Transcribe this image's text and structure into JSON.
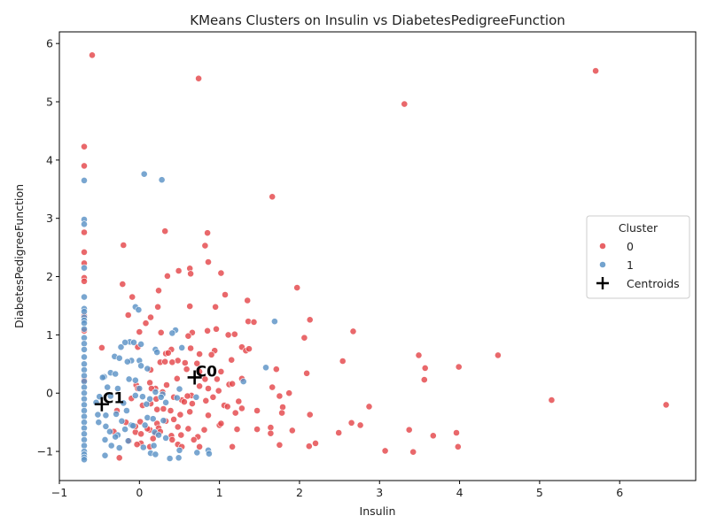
{
  "chart_data": {
    "type": "scatter",
    "title": "KMeans Clusters on Insulin vs DiabetesPedigreeFunction",
    "xlabel": "Insulin",
    "ylabel": "DiabetesPedigreeFunction",
    "xlim": [
      -1.0,
      6.95
    ],
    "ylim": [
      -1.5,
      6.2
    ],
    "xticks": [
      -1,
      0,
      1,
      2,
      3,
      4,
      5,
      6
    ],
    "yticks": [
      -1,
      0,
      1,
      2,
      3,
      4,
      5,
      6
    ],
    "grid": false,
    "legend": {
      "title": "Cluster",
      "placement": "center-right",
      "entries": [
        "0",
        "1",
        "Centroids"
      ]
    },
    "colors": {
      "0": "#e4474b",
      "1": "#5b93c6",
      "centroid": "#000000"
    },
    "series": [
      {
        "name": "0",
        "points": [
          [
            -0.59,
            5.8
          ],
          [
            0.74,
            5.4
          ],
          [
            5.7,
            5.53
          ],
          [
            3.31,
            4.96
          ],
          [
            -0.69,
            4.23
          ],
          [
            -0.69,
            3.9
          ],
          [
            1.66,
            3.37
          ],
          [
            0.32,
            2.78
          ],
          [
            0.85,
            2.75
          ],
          [
            -0.69,
            2.76
          ],
          [
            -0.2,
            2.54
          ],
          [
            0.82,
            2.53
          ],
          [
            -0.69,
            2.42
          ],
          [
            0.86,
            2.25
          ],
          [
            -0.69,
            2.23
          ],
          [
            0.49,
            2.1
          ],
          [
            0.63,
            2.14
          ],
          [
            0.35,
            2.01
          ],
          [
            0.64,
            2.05
          ],
          [
            1.02,
            2.06
          ],
          [
            -0.69,
            1.98
          ],
          [
            -0.69,
            1.92
          ],
          [
            -0.21,
            1.87
          ],
          [
            1.97,
            1.81
          ],
          [
            0.24,
            1.76
          ],
          [
            1.07,
            1.69
          ],
          [
            -0.09,
            1.65
          ],
          [
            1.35,
            1.59
          ],
          [
            0.23,
            1.48
          ],
          [
            0.63,
            1.49
          ],
          [
            0.95,
            1.48
          ],
          [
            -0.14,
            1.34
          ],
          [
            0.14,
            1.3
          ],
          [
            -0.69,
            1.33
          ],
          [
            1.36,
            1.23
          ],
          [
            1.43,
            1.22
          ],
          [
            2.13,
            1.26
          ],
          [
            0.08,
            1.2
          ],
          [
            0.96,
            1.1
          ],
          [
            1.19,
            1.01
          ],
          [
            1.11,
            1.0
          ],
          [
            2.67,
            1.06
          ],
          [
            0.27,
            1.04
          ],
          [
            0.66,
            1.04
          ],
          [
            0.85,
            1.07
          ],
          [
            -0.69,
            1.07
          ],
          [
            0.0,
            1.05
          ],
          [
            2.06,
            0.95
          ],
          [
            0.61,
            0.98
          ],
          [
            -0.47,
            0.78
          ],
          [
            -0.02,
            0.79
          ],
          [
            0.64,
            0.77
          ],
          [
            1.28,
            0.79
          ],
          [
            1.33,
            0.73
          ],
          [
            1.37,
            0.76
          ],
          [
            0.94,
            0.73
          ],
          [
            0.4,
            0.75
          ],
          [
            0.48,
            0.56
          ],
          [
            0.9,
            0.66
          ],
          [
            0.33,
            0.68
          ],
          [
            0.75,
            0.67
          ],
          [
            0.36,
            0.69
          ],
          [
            1.15,
            0.57
          ],
          [
            2.54,
            0.55
          ],
          [
            3.49,
            0.65
          ],
          [
            4.48,
            0.65
          ],
          [
            0.26,
            0.53
          ],
          [
            0.32,
            0.54
          ],
          [
            0.41,
            0.53
          ],
          [
            0.57,
            0.52
          ],
          [
            0.72,
            0.51
          ],
          [
            0.14,
            0.4
          ],
          [
            0.59,
            0.41
          ],
          [
            1.02,
            0.37
          ],
          [
            0.75,
            0.37
          ],
          [
            3.57,
            0.43
          ],
          [
            3.99,
            0.45
          ],
          [
            1.71,
            0.41
          ],
          [
            2.09,
            0.34
          ],
          [
            3.56,
            0.23
          ],
          [
            1.28,
            0.25
          ],
          [
            0.47,
            0.25
          ],
          [
            0.82,
            0.24
          ],
          [
            0.97,
            0.24
          ],
          [
            -0.69,
            0.22
          ],
          [
            0.34,
            0.14
          ],
          [
            0.13,
            0.18
          ],
          [
            1.12,
            0.15
          ],
          [
            1.16,
            0.16
          ],
          [
            1.66,
            0.1
          ],
          [
            0.75,
            0.12
          ],
          [
            0.99,
            0.04
          ],
          [
            0.2,
            0.08
          ],
          [
            0.15,
            0.08
          ],
          [
            -0.04,
            0.14
          ],
          [
            -0.02,
            0.08
          ],
          [
            1.87,
            0.0
          ],
          [
            1.75,
            -0.05
          ],
          [
            0.86,
            0.08
          ],
          [
            0.29,
            0.02
          ],
          [
            0.65,
            -0.04
          ],
          [
            0.92,
            -0.07
          ],
          [
            0.43,
            -0.07
          ],
          [
            -0.1,
            -0.09
          ],
          [
            0.21,
            -0.1
          ],
          [
            0.53,
            -0.12
          ],
          [
            0.56,
            -0.15
          ],
          [
            0.66,
            -0.18
          ],
          [
            0.83,
            -0.13
          ],
          [
            1.24,
            -0.14
          ],
          [
            1.06,
            -0.21
          ],
          [
            1.1,
            -0.23
          ],
          [
            -0.28,
            -0.3
          ],
          [
            0.04,
            -0.21
          ],
          [
            0.14,
            -0.18
          ],
          [
            0.3,
            -0.27
          ],
          [
            1.28,
            -0.26
          ],
          [
            1.47,
            -0.3
          ],
          [
            1.79,
            -0.24
          ],
          [
            2.87,
            -0.23
          ],
          [
            5.15,
            -0.12
          ],
          [
            6.58,
            -0.2
          ],
          [
            0.63,
            -0.32
          ],
          [
            0.86,
            -0.38
          ],
          [
            1.2,
            -0.34
          ],
          [
            1.78,
            -0.34
          ],
          [
            2.13,
            -0.37
          ],
          [
            0.43,
            -0.45
          ],
          [
            0.33,
            -0.48
          ],
          [
            0.01,
            -0.49
          ],
          [
            -0.17,
            -0.5
          ],
          [
            0.22,
            -0.52
          ],
          [
            2.65,
            -0.51
          ],
          [
            2.76,
            -0.55
          ],
          [
            1.64,
            -0.59
          ],
          [
            1.22,
            -0.62
          ],
          [
            1.47,
            -0.62
          ],
          [
            1.91,
            -0.64
          ],
          [
            3.37,
            -0.63
          ],
          [
            2.49,
            -0.68
          ],
          [
            3.67,
            -0.73
          ],
          [
            3.96,
            -0.68
          ],
          [
            0.13,
            -0.63
          ],
          [
            0.24,
            -0.6
          ],
          [
            0.48,
            -0.58
          ],
          [
            0.61,
            -0.61
          ],
          [
            0.81,
            -0.63
          ],
          [
            1.0,
            -0.55
          ],
          [
            -0.32,
            -0.66
          ],
          [
            -0.05,
            -0.67
          ],
          [
            0.02,
            -0.7
          ],
          [
            0.2,
            -0.7
          ],
          [
            0.4,
            -0.73
          ],
          [
            0.52,
            -0.72
          ],
          [
            0.73,
            -0.75
          ],
          [
            1.64,
            -0.69
          ],
          [
            -0.13,
            -0.82
          ],
          [
            0.17,
            -0.78
          ],
          [
            0.41,
            -0.8
          ],
          [
            0.68,
            -0.8
          ],
          [
            1.16,
            -0.92
          ],
          [
            1.75,
            -0.89
          ],
          [
            2.12,
            -0.91
          ],
          [
            2.2,
            -0.86
          ],
          [
            3.07,
            -0.99
          ],
          [
            3.42,
            -1.01
          ],
          [
            3.98,
            -0.92
          ],
          [
            -0.25,
            -1.11
          ],
          [
            0.02,
            -0.86
          ],
          [
            0.13,
            -0.92
          ],
          [
            0.48,
            -0.88
          ],
          [
            0.53,
            -0.92
          ],
          [
            0.75,
            -0.92
          ],
          [
            -0.03,
            -0.88
          ],
          [
            0.26,
            -0.66
          ],
          [
            0.1,
            -0.61
          ],
          [
            0.51,
            -0.37
          ],
          [
            0.6,
            -0.05
          ],
          [
            -0.05,
            -0.57
          ],
          [
            0.39,
            -0.3
          ],
          [
            0.22,
            -0.28
          ],
          [
            1.02,
            -0.52
          ]
        ]
      },
      {
        "name": "1",
        "points": [
          [
            -0.69,
            3.65
          ],
          [
            0.06,
            3.76
          ],
          [
            0.28,
            3.66
          ],
          [
            -0.69,
            2.98
          ],
          [
            -0.69,
            2.9
          ],
          [
            -0.69,
            2.15
          ],
          [
            -0.69,
            1.65
          ],
          [
            -0.69,
            1.45
          ],
          [
            -0.69,
            1.4
          ],
          [
            -0.69,
            1.3
          ],
          [
            -0.69,
            1.25
          ],
          [
            -0.69,
            1.2
          ],
          [
            -0.69,
            1.1
          ],
          [
            -0.69,
            0.95
          ],
          [
            -0.69,
            0.85
          ],
          [
            -0.69,
            0.75
          ],
          [
            -0.69,
            0.62
          ],
          [
            -0.69,
            0.5
          ],
          [
            -0.69,
            0.4
          ],
          [
            -0.69,
            0.3
          ],
          [
            -0.69,
            0.2
          ],
          [
            -0.69,
            0.1
          ],
          [
            -0.69,
            0.0
          ],
          [
            -0.69,
            -0.1
          ],
          [
            -0.69,
            -0.2
          ],
          [
            -0.69,
            -0.3
          ],
          [
            -0.69,
            -0.4
          ],
          [
            -0.69,
            -0.5
          ],
          [
            -0.69,
            -0.6
          ],
          [
            -0.69,
            -0.7
          ],
          [
            -0.69,
            -0.8
          ],
          [
            -0.69,
            -0.9
          ],
          [
            -0.69,
            -1.0
          ],
          [
            -0.69,
            -1.05
          ],
          [
            -0.69,
            -1.1
          ],
          [
            -0.69,
            -1.14
          ],
          [
            -0.05,
            1.48
          ],
          [
            -0.01,
            1.43
          ],
          [
            1.69,
            1.23
          ],
          [
            0.45,
            1.08
          ],
          [
            0.41,
            1.03
          ],
          [
            -0.12,
            0.88
          ],
          [
            -0.07,
            0.87
          ],
          [
            -0.18,
            0.87
          ],
          [
            0.02,
            0.84
          ],
          [
            0.2,
            0.75
          ],
          [
            0.53,
            0.78
          ],
          [
            -0.23,
            0.79
          ],
          [
            0.22,
            0.7
          ],
          [
            -0.31,
            0.63
          ],
          [
            -0.25,
            0.6
          ],
          [
            -0.1,
            0.56
          ],
          [
            -0.15,
            0.54
          ],
          [
            0.0,
            0.56
          ],
          [
            0.02,
            0.47
          ],
          [
            0.1,
            0.42
          ],
          [
            1.58,
            0.44
          ],
          [
            -0.36,
            0.35
          ],
          [
            -0.3,
            0.33
          ],
          [
            -0.44,
            0.28
          ],
          [
            -0.13,
            0.24
          ],
          [
            -0.05,
            0.22
          ],
          [
            1.3,
            0.2
          ],
          [
            -0.4,
            0.1
          ],
          [
            -0.27,
            0.08
          ],
          [
            0.0,
            0.08
          ],
          [
            0.5,
            0.07
          ],
          [
            0.2,
            0.02
          ],
          [
            0.29,
            -0.02
          ],
          [
            -0.36,
            -0.05
          ],
          [
            -0.5,
            -0.06
          ],
          [
            -0.05,
            -0.04
          ],
          [
            0.04,
            -0.06
          ],
          [
            0.13,
            -0.1
          ],
          [
            0.47,
            -0.08
          ],
          [
            0.71,
            -0.07
          ],
          [
            -0.54,
            -0.16
          ],
          [
            -0.2,
            -0.17
          ],
          [
            0.09,
            -0.19
          ],
          [
            0.33,
            -0.16
          ],
          [
            -0.52,
            -0.37
          ],
          [
            -0.42,
            -0.38
          ],
          [
            -0.29,
            -0.36
          ],
          [
            -0.16,
            -0.3
          ],
          [
            0.1,
            -0.42
          ],
          [
            0.17,
            -0.44
          ],
          [
            -0.22,
            -0.48
          ],
          [
            0.3,
            -0.47
          ],
          [
            -0.1,
            -0.55
          ],
          [
            0.07,
            -0.55
          ],
          [
            -0.51,
            -0.5
          ],
          [
            -0.42,
            -0.57
          ],
          [
            -0.18,
            -0.62
          ],
          [
            -0.08,
            -0.56
          ],
          [
            -0.27,
            -0.72
          ],
          [
            0.19,
            -0.67
          ],
          [
            0.24,
            -0.72
          ],
          [
            0.33,
            -0.77
          ],
          [
            -0.37,
            -0.66
          ],
          [
            -0.3,
            -0.75
          ],
          [
            -0.43,
            -0.8
          ],
          [
            -0.14,
            -0.82
          ],
          [
            0.18,
            -0.9
          ],
          [
            0.05,
            -0.93
          ],
          [
            0.5,
            -0.98
          ],
          [
            0.72,
            -1.02
          ],
          [
            0.86,
            -0.98
          ],
          [
            0.87,
            -1.04
          ],
          [
            0.14,
            -1.03
          ],
          [
            0.2,
            -1.05
          ],
          [
            -0.25,
            -0.94
          ],
          [
            -0.35,
            -0.9
          ],
          [
            0.38,
            -1.12
          ],
          [
            0.49,
            -1.11
          ],
          [
            -0.43,
            -1.07
          ],
          [
            -0.46,
            0.27
          ],
          [
            0.27,
            -0.07
          ]
        ]
      }
    ],
    "centroids": [
      {
        "label": "C0",
        "x": 0.69,
        "y": 0.27
      },
      {
        "label": "C1",
        "x": -0.47,
        "y": -0.19
      }
    ]
  }
}
